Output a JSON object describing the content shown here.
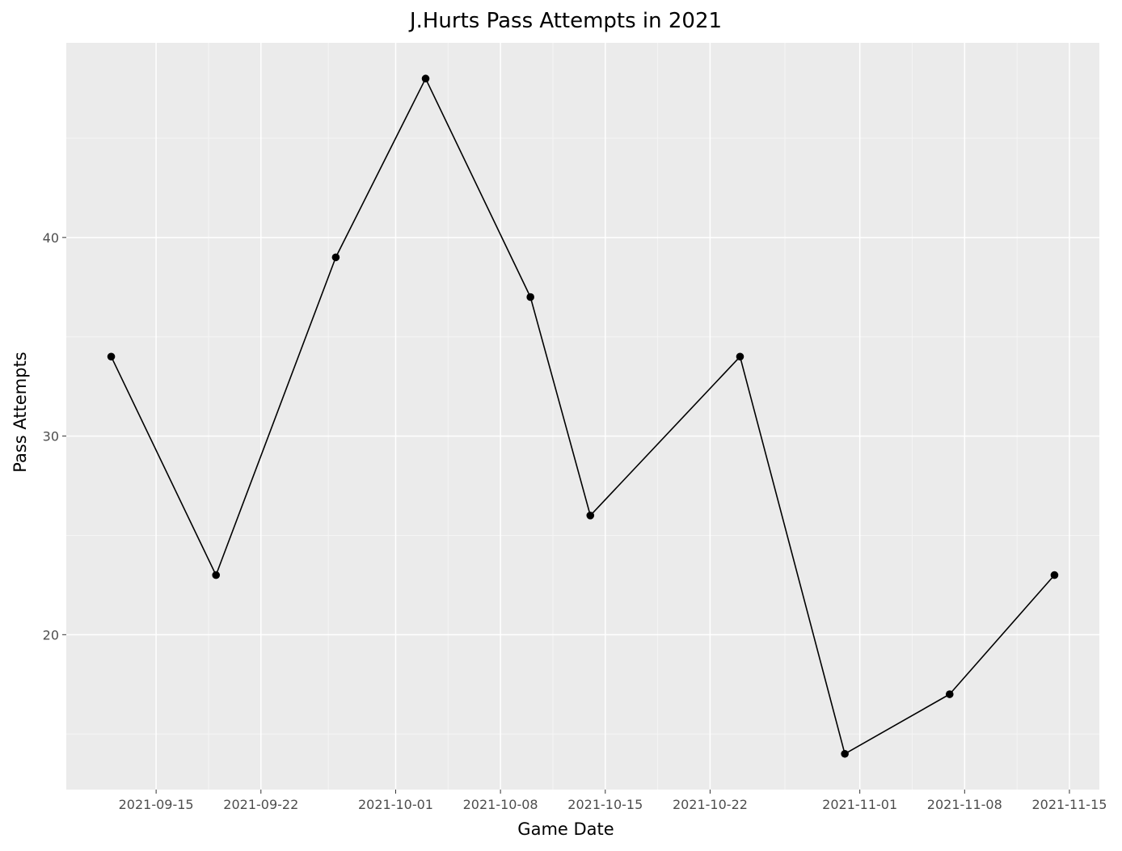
{
  "chart_data": {
    "type": "line",
    "title": "J.Hurts Pass Attempts in 2021",
    "xlabel": "Game Date",
    "ylabel": "Pass Attempts",
    "x": [
      "2021-09-12",
      "2021-09-19",
      "2021-09-27",
      "2021-10-03",
      "2021-10-10",
      "2021-10-14",
      "2021-10-24",
      "2021-10-31",
      "2021-11-07",
      "2021-11-14"
    ],
    "y": [
      34,
      23,
      39,
      48,
      37,
      26,
      34,
      14,
      17,
      23
    ],
    "x_ticks": [
      "2021-09-15",
      "2021-09-22",
      "2021-10-01",
      "2021-10-08",
      "2021-10-15",
      "2021-10-22",
      "2021-11-01",
      "2021-11-08",
      "2021-11-15"
    ],
    "y_ticks": [
      20,
      30,
      40
    ],
    "xlim": [
      "2021-09-09",
      "2021-11-17"
    ],
    "ylim": [
      12.2,
      49.8
    ],
    "grid": true,
    "legend": "none",
    "colors": {
      "panel_background": "#ebebeb",
      "grid_major": "#ffffff",
      "grid_minor": "#f5f5f5",
      "line": "#000000",
      "point": "#000000"
    }
  }
}
